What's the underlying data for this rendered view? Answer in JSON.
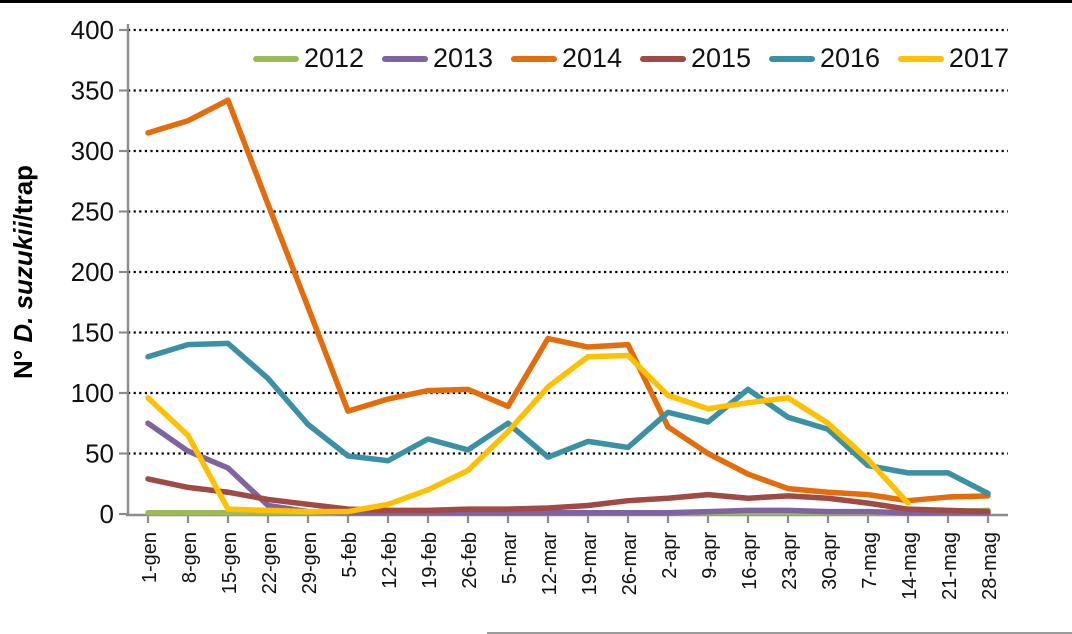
{
  "chart_data": {
    "type": "line",
    "title": "",
    "ylabel": "N° D. suzukii/trap",
    "ylabel_parts": [
      {
        "text": "N° ",
        "italic": false
      },
      {
        "text": "D. suzukii",
        "italic": true
      },
      {
        "text": "/trap",
        "italic": false
      }
    ],
    "xlabel": "",
    "ylim": [
      0,
      400
    ],
    "y_tick_step": 50,
    "grid": "horizontal-dotted",
    "legend_position": "top",
    "categories": [
      "1-gen",
      "8-gen",
      "15-gen",
      "22-gen",
      "29-gen",
      "5-feb",
      "12-feb",
      "19-feb",
      "26-feb",
      "5-mar",
      "12-mar",
      "19-mar",
      "26-mar",
      "2-apr",
      "9-apr",
      "16-apr",
      "23-apr",
      "30-apr",
      "7-mag",
      "14-mag",
      "21-mag",
      "28-mag"
    ],
    "series": [
      {
        "name": "2012",
        "color": "#9BBB59",
        "values": [
          1,
          1,
          1,
          1,
          1,
          1,
          1,
          1,
          1,
          1,
          1,
          1,
          1,
          1,
          1,
          1,
          1,
          1,
          1,
          1,
          2,
          3
        ]
      },
      {
        "name": "2013",
        "color": "#8064A2",
        "values": [
          75,
          52,
          38,
          7,
          2,
          1,
          1,
          1,
          1,
          1,
          1,
          1,
          1,
          1,
          2,
          3,
          3,
          2,
          2,
          1,
          1,
          1
        ]
      },
      {
        "name": "2014",
        "color": "#E46C0A",
        "values": [
          315,
          325,
          342,
          256,
          171,
          85,
          95,
          102,
          103,
          89,
          145,
          138,
          140,
          72,
          50,
          33,
          21,
          18,
          16,
          11,
          14,
          15
        ]
      },
      {
        "name": "2015",
        "color": "#A04A45",
        "values": [
          29,
          22,
          18,
          12,
          8,
          4,
          3,
          3,
          4,
          4,
          5,
          7,
          11,
          13,
          16,
          13,
          15,
          13,
          9,
          4,
          3,
          2
        ]
      },
      {
        "name": "2016",
        "color": "#3A91A5",
        "values": [
          130,
          140,
          141,
          112,
          74,
          48,
          44,
          62,
          53,
          75,
          47,
          60,
          55,
          84,
          76,
          103,
          80,
          70,
          40,
          34,
          34,
          17
        ]
      },
      {
        "name": "2017",
        "color": "#FFC000",
        "values": [
          96,
          65,
          4,
          3,
          2,
          2,
          8,
          20,
          36,
          68,
          105,
          130,
          131,
          98,
          87,
          92,
          96,
          75,
          45,
          9,
          null,
          null
        ]
      }
    ]
  }
}
